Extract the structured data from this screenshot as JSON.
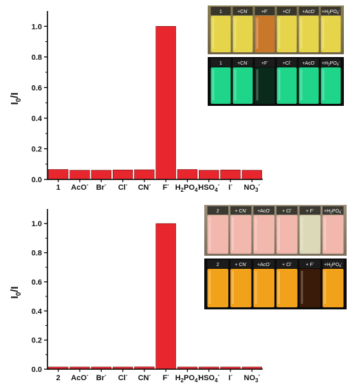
{
  "chart_data": [
    {
      "type": "bar",
      "panel": "top",
      "categories": [
        "1",
        "AcO-",
        "Br-",
        "Cl-",
        "CN-",
        "F-",
        "H2PO4-",
        "HSO4-",
        "I-",
        "NO3-"
      ],
      "category_labels": [
        {
          "base": "1",
          "sub": "",
          "sup": ""
        },
        {
          "base": "AcO",
          "sub": "",
          "sup": "-"
        },
        {
          "base": "Br",
          "sub": "",
          "sup": "-"
        },
        {
          "base": "Cl",
          "sub": "",
          "sup": "-"
        },
        {
          "base": "CN",
          "sub": "",
          "sup": "-"
        },
        {
          "base": "F",
          "sub": "",
          "sup": "-"
        },
        {
          "base": "H",
          "sub": "2",
          "rest": "PO",
          "sub2": "4",
          "sup": "-"
        },
        {
          "base": "HSO",
          "sub": "4",
          "sup": "-"
        },
        {
          "base": "I",
          "sub": "",
          "sup": "-"
        },
        {
          "base": "NO",
          "sub": "3",
          "sup": "-"
        }
      ],
      "values": [
        0.065,
        0.06,
        0.06,
        0.062,
        0.063,
        1.0,
        0.065,
        0.06,
        0.062,
        0.06
      ],
      "ylabel": {
        "base": "I",
        "sub": "0",
        "rest": "/I"
      },
      "ylim": [
        0,
        1.1
      ],
      "yticks": [
        "0.0",
        "0.2",
        "0.4",
        "0.6",
        "0.8",
        "1.0"
      ],
      "bar_color": "#e8262e",
      "inset_photos": {
        "daylight": {
          "labels": [
            "1",
            "+CN",
            "+F",
            "+Cl",
            "+AcO",
            "+H2PO4"
          ],
          "vial_colors": [
            "#e6d44a",
            "#e6d44a",
            "#c9782a",
            "#e6d44a",
            "#e6d44a",
            "#e6d44a"
          ]
        },
        "uv": {
          "labels": [
            "1",
            "+CN",
            "+F",
            "+Cl",
            "+AcO",
            "+H2PO4"
          ],
          "vial_colors": [
            "#1fd58a",
            "#1fd58a",
            "#0a2a1c",
            "#1fd58a",
            "#1fd58a",
            "#1fd58a"
          ]
        }
      }
    },
    {
      "type": "bar",
      "panel": "bottom",
      "categories": [
        "2",
        "AcO-",
        "Br-",
        "Cl-",
        "CN-",
        "F-",
        "H2PO4-",
        "HSO4-",
        "I-",
        "NO3-"
      ],
      "category_labels": [
        {
          "base": "2",
          "sub": "",
          "sup": ""
        },
        {
          "base": "AcO",
          "sub": "",
          "sup": "-"
        },
        {
          "base": "Br",
          "sub": "",
          "sup": "-"
        },
        {
          "base": "Cl",
          "sub": "",
          "sup": "-"
        },
        {
          "base": "CN",
          "sub": "",
          "sup": "-"
        },
        {
          "base": "F",
          "sub": "",
          "sup": "-"
        },
        {
          "base": "H",
          "sub": "2",
          "rest": "PO",
          "sub2": "4",
          "sup": "-"
        },
        {
          "base": "HSO",
          "sub": "4",
          "sup": "-"
        },
        {
          "base": "I",
          "sub": "",
          "sup": "-"
        },
        {
          "base": "NO",
          "sub": "3",
          "sup": "-"
        }
      ],
      "values": [
        0.015,
        0.015,
        0.015,
        0.015,
        0.016,
        1.0,
        0.015,
        0.015,
        0.015,
        0.015
      ],
      "ylabel": {
        "base": "I",
        "sub": "0",
        "rest": "/I"
      },
      "ylim": [
        0,
        1.1
      ],
      "yticks": [
        "0.0",
        "0.2",
        "0.4",
        "0.6",
        "0.8",
        "1.0"
      ],
      "bar_color": "#e8262e",
      "inset_photos": {
        "daylight": {
          "labels": [
            "2",
            "+ CN",
            "+AcO",
            "+ Cl",
            "+ F",
            "+H2PO4"
          ],
          "vial_colors": [
            "#f2b8ae",
            "#f2b8ae",
            "#f2b8ae",
            "#f2b8ae",
            "#dcd9b8",
            "#f2b8ae"
          ]
        },
        "uv": {
          "labels": [
            "2",
            "+ CN",
            "+AcO",
            "+ Cl",
            "+ F",
            "+H2PO4"
          ],
          "vial_colors": [
            "#f2a21a",
            "#f2a21a",
            "#f2a21a",
            "#f2a21a",
            "#3a1a08",
            "#f2a21a"
          ]
        }
      }
    }
  ]
}
